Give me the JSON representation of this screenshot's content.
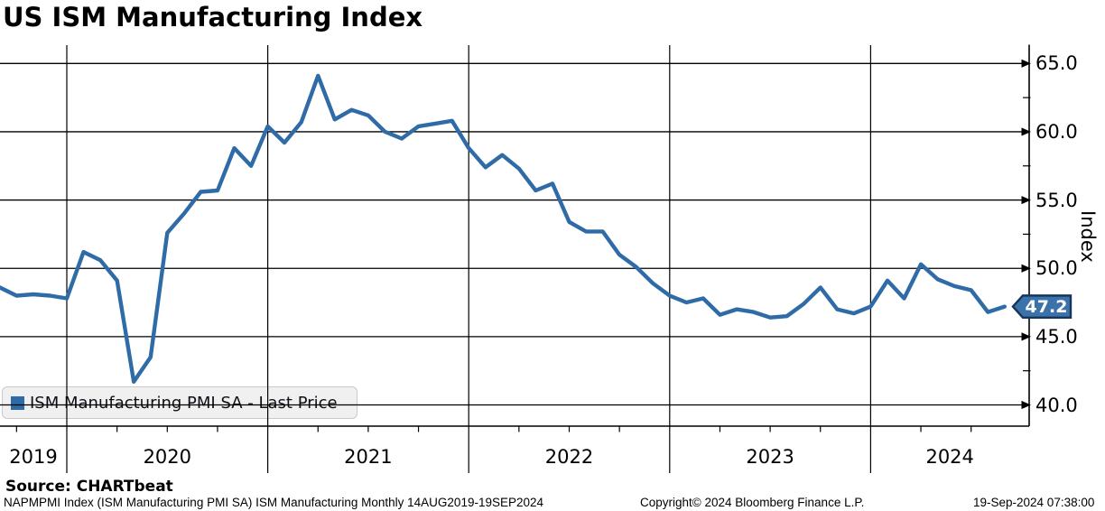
{
  "chart_data": {
    "type": "line",
    "title": "US ISM Manufacturing Index",
    "series": [
      {
        "name": "ISM Manufacturing PMI SA - Last Price",
        "color": "#2f6ba7",
        "start_month": "2019-08",
        "end_month": "2024-08",
        "frequency": "monthly",
        "values": [
          48.6,
          48.0,
          48.1,
          48.0,
          47.8,
          51.2,
          50.6,
          49.1,
          41.7,
          43.5,
          52.6,
          54.0,
          55.6,
          55.7,
          58.8,
          57.5,
          60.4,
          59.2,
          60.7,
          64.1,
          60.9,
          61.6,
          61.2,
          60.0,
          59.5,
          60.4,
          60.6,
          60.8,
          58.8,
          57.4,
          58.3,
          57.3,
          55.7,
          56.2,
          53.4,
          52.7,
          52.7,
          51.0,
          50.1,
          48.9,
          48.0,
          47.5,
          47.8,
          46.6,
          47.0,
          46.8,
          46.4,
          46.5,
          47.4,
          48.6,
          47.0,
          46.7,
          47.2,
          49.1,
          47.8,
          50.3,
          49.2,
          48.7,
          48.4,
          46.8,
          47.2
        ]
      }
    ],
    "x_axis": {
      "tick_labels": [
        "2019",
        "2020",
        "2021",
        "2022",
        "2023",
        "2024"
      ],
      "minor_ticks": "quarterly"
    },
    "y_axis": {
      "label": "Index",
      "side": "right",
      "tick_labels": [
        "65.0",
        "60.0",
        "55.0",
        "50.0",
        "45.0",
        "40.0"
      ],
      "tick_values": [
        65,
        60,
        55,
        50,
        45,
        40
      ],
      "minor_tick_values": [
        62.5,
        57.5,
        52.5,
        47.5,
        42.5
      ],
      "ylim": [
        38.4,
        66.4
      ]
    },
    "last_price": {
      "label": "47.2",
      "value": 47.2,
      "badge_fill": "#3c72aa",
      "badge_border": "#15365c",
      "text_color": "#ffffff"
    },
    "legend": {
      "label": "ISM Manufacturing PMI SA - Last Price",
      "swatch_color": "#2f6ba7",
      "position": "bottom-left"
    },
    "grid": "on"
  },
  "footer": {
    "source": "Source: CHARTbeat",
    "info": "NAPMPMI Index (ISM Manufacturing PMI SA) ISM Manufacturing  Monthly 14AUG2019-19SEP2024",
    "copyright": "Copyright© 2024 Bloomberg Finance L.P.",
    "timestamp": "19-Sep-2024 07:38:00"
  }
}
